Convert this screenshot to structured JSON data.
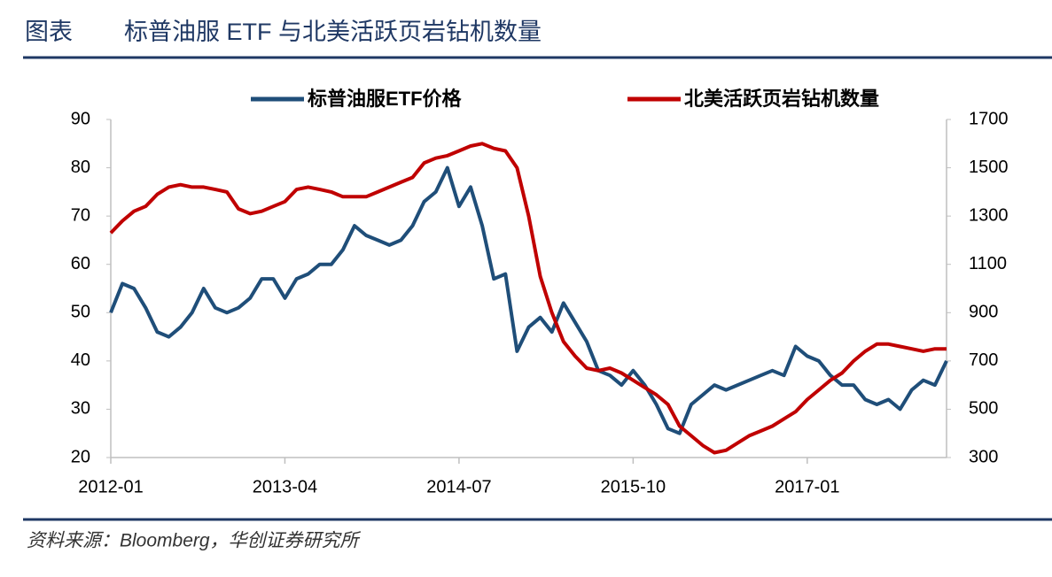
{
  "header": {
    "label": "图表",
    "title": "标普油服 ETF 与北美活跃页岩钻机数量"
  },
  "footer": {
    "source": "资料来源：Bloomberg，华创证券研究所"
  },
  "chart_data": {
    "type": "line",
    "x": [
      "2012-01",
      "2012-02",
      "2012-03",
      "2012-04",
      "2012-05",
      "2012-06",
      "2012-07",
      "2012-08",
      "2012-09",
      "2012-10",
      "2012-11",
      "2012-12",
      "2013-01",
      "2013-02",
      "2013-03",
      "2013-04",
      "2013-05",
      "2013-06",
      "2013-07",
      "2013-08",
      "2013-09",
      "2013-10",
      "2013-11",
      "2013-12",
      "2014-01",
      "2014-02",
      "2014-03",
      "2014-04",
      "2014-05",
      "2014-06",
      "2014-07",
      "2014-08",
      "2014-09",
      "2014-10",
      "2014-11",
      "2014-12",
      "2015-01",
      "2015-02",
      "2015-03",
      "2015-04",
      "2015-05",
      "2015-06",
      "2015-07",
      "2015-08",
      "2015-09",
      "2015-10",
      "2015-11",
      "2015-12",
      "2016-01",
      "2016-02",
      "2016-03",
      "2016-04",
      "2016-05",
      "2016-06",
      "2016-07",
      "2016-08",
      "2016-09",
      "2016-10",
      "2016-11",
      "2016-12",
      "2017-01",
      "2017-02",
      "2017-03",
      "2017-04",
      "2017-05",
      "2017-06",
      "2017-07",
      "2017-08",
      "2017-09",
      "2017-10",
      "2017-11",
      "2017-12",
      "2018-01"
    ],
    "xlim": [
      "2012-01",
      "2018-01"
    ],
    "xticks": [
      "2012-01",
      "2013-04",
      "2014-07",
      "2015-10",
      "2017-01"
    ],
    "ylim": [
      20,
      90
    ],
    "yticks": [
      20,
      30,
      40,
      50,
      60,
      70,
      80,
      90
    ],
    "y2lim": [
      300,
      1700
    ],
    "y2ticks": [
      300,
      500,
      700,
      900,
      1100,
      1300,
      1500,
      1700
    ],
    "series": [
      {
        "name": "标普油服ETF价格",
        "color": "#1f4e79",
        "values": [
          50,
          56,
          55,
          51,
          46,
          45,
          47,
          50,
          55,
          51,
          50,
          51,
          53,
          57,
          57,
          53,
          57,
          58,
          60,
          60,
          63,
          68,
          66,
          65,
          64,
          65,
          68,
          73,
          75,
          80,
          72,
          76,
          68,
          57,
          58,
          42,
          47,
          49,
          46,
          52,
          48,
          44,
          38,
          37,
          35,
          38,
          35,
          31,
          26,
          25,
          31,
          33,
          35,
          34,
          35,
          36,
          37,
          38,
          37,
          43,
          41,
          40,
          37,
          35,
          35,
          32,
          31,
          32,
          30,
          34,
          36,
          35,
          40
        ]
      },
      {
        "name": "北美活跃页岩钻机数量",
        "color": "#c00000",
        "axis": "y2",
        "values": [
          1230,
          1280,
          1320,
          1340,
          1390,
          1420,
          1430,
          1420,
          1420,
          1410,
          1400,
          1330,
          1310,
          1320,
          1340,
          1360,
          1410,
          1420,
          1410,
          1400,
          1380,
          1380,
          1380,
          1400,
          1420,
          1440,
          1460,
          1520,
          1540,
          1550,
          1570,
          1590,
          1600,
          1580,
          1570,
          1500,
          1300,
          1050,
          900,
          780,
          720,
          670,
          660,
          670,
          650,
          620,
          590,
          560,
          520,
          430,
          390,
          350,
          320,
          330,
          360,
          390,
          410,
          430,
          460,
          490,
          540,
          580,
          620,
          650,
          700,
          740,
          770,
          770,
          760,
          750,
          740,
          750,
          750
        ]
      }
    ]
  }
}
